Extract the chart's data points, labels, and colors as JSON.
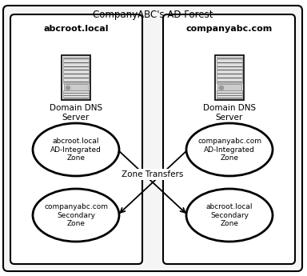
{
  "title": "CompanyABC's AD Forest",
  "bg_color": "#ffffff",
  "outer_box_color": "#000000",
  "inner_box_color": "#000000",
  "left_domain": "abcroot.local",
  "right_domain": "companyabc.com",
  "dns_label": "Domain DNS\nServer",
  "left_ad_zone_label": "abcroot.local\nAD-Integrated\nZone",
  "left_sec_zone_label": "companyabc.com\nSecondary\nZone",
  "right_ad_zone_label": "companyabc.com\nAD-Integrated\nZone",
  "right_sec_zone_label": "abcroot.local\nSecondary\nZone",
  "zone_transfers_label": "Zone Transfers",
  "ellipse_color": "#ffffff",
  "ellipse_edge": "#000000",
  "outer_bg": "#f5f5f5"
}
